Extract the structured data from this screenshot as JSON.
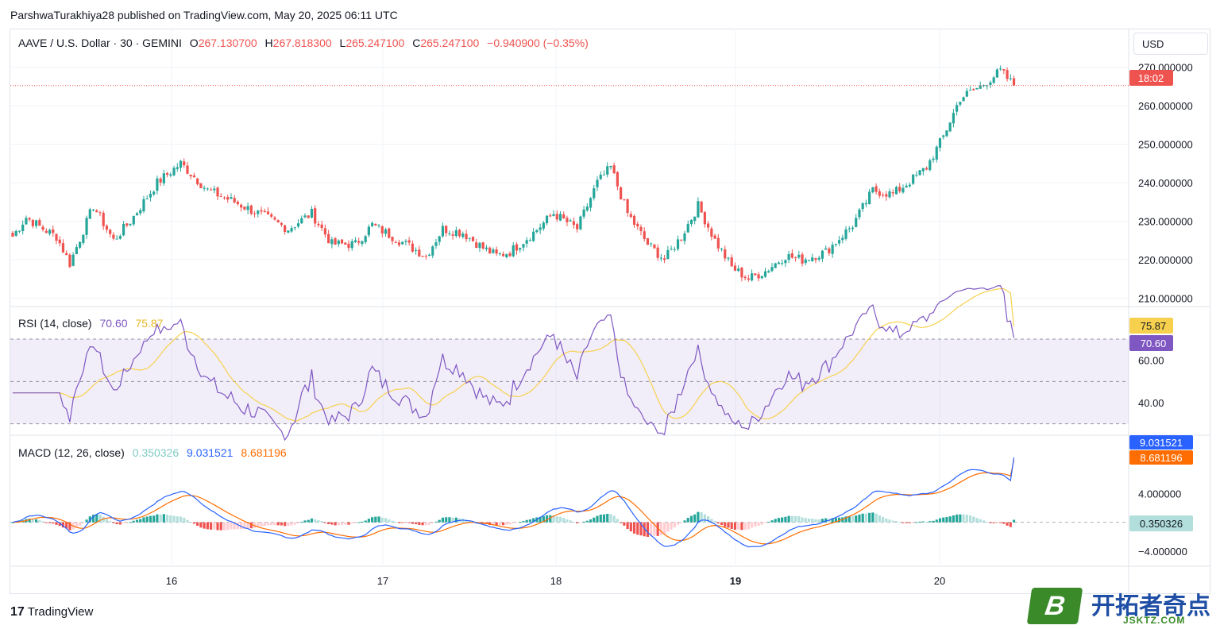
{
  "publisher": "ParshwaTurakhiya28 published on TradingView.com, May 20, 2025 06:11 UTC",
  "currency_button": "USD",
  "footer_logo": "TradingView",
  "watermark": {
    "mark": "B",
    "title": "开拓者奇点",
    "subtitle": "JSKTZ.COM"
  },
  "legend": {
    "symbol": "AAVE / U.S. Dollar · 30 · GEMINI",
    "o_label": "O",
    "o": "267.130700",
    "h_label": "H",
    "h": "267.818300",
    "l_label": "L",
    "l": "265.247100",
    "c_label": "C",
    "c": "265.247100",
    "change": "−0.940900 (−0.35%)"
  },
  "rsi_legend": {
    "name": "RSI (14, close)",
    "rsi": "70.60",
    "ma": "75.87"
  },
  "macd_legend": {
    "name": "MACD (12, 26, close)",
    "hist": "0.350326",
    "macd": "9.031521",
    "signal": "8.681196"
  },
  "price_badge": {
    "value": "270.000000",
    "countdown": "18:02"
  },
  "rsi_badges": {
    "ma": "75.87",
    "rsi": "70.60"
  },
  "macd_badges": {
    "macd": "9.031521",
    "signal": "8.681196",
    "hist": "0.350326"
  },
  "colors": {
    "up": "#26a69a",
    "down": "#ef5350",
    "rsi": "#7e57c2",
    "rsi_ma": "#f7d14e",
    "macd": "#2962ff",
    "signal": "#ff6d00",
    "hist_up": "#26a69a",
    "hist_up_fade": "#b2dfdb",
    "hist_down": "#ef5350",
    "hist_down_fade": "#ffcdd2"
  },
  "chart_data": [
    {
      "type": "candlestick",
      "title": "AAVE / U.S. Dollar · 30 · GEMINI",
      "x_tick_labels": [
        "16",
        "17",
        "18",
        "19",
        "20"
      ],
      "y_tick_labels": [
        "270.000000",
        "260.000000",
        "250.000000",
        "240.000000",
        "230.000000",
        "220.000000",
        "210.000000"
      ],
      "ylim": [
        208,
        272
      ],
      "grid": true,
      "last_price": 265.2471,
      "anchor_closes": [
        [
          0,
          226
        ],
        [
          4,
          231
        ],
        [
          9,
          228
        ],
        [
          13,
          226
        ],
        [
          17,
          219
        ],
        [
          24,
          234
        ],
        [
          30,
          225
        ],
        [
          35,
          230
        ],
        [
          43,
          240
        ],
        [
          50,
          245
        ],
        [
          58,
          238
        ],
        [
          66,
          235
        ],
        [
          73,
          232
        ],
        [
          82,
          228
        ],
        [
          89,
          232
        ],
        [
          95,
          224
        ],
        [
          102,
          224
        ],
        [
          107,
          229
        ],
        [
          115,
          225
        ],
        [
          123,
          221
        ],
        [
          128,
          228
        ],
        [
          134,
          227
        ],
        [
          140,
          223
        ],
        [
          144,
          221
        ],
        [
          148,
          222
        ],
        [
          155,
          227
        ],
        [
          161,
          232
        ],
        [
          168,
          228
        ],
        [
          174,
          240
        ],
        [
          178,
          244
        ],
        [
          183,
          232
        ],
        [
          189,
          224
        ],
        [
          194,
          220
        ],
        [
          199,
          226
        ],
        [
          204,
          234
        ],
        [
          209,
          225
        ],
        [
          214,
          218
        ],
        [
          219,
          215
        ],
        [
          224,
          217
        ],
        [
          230,
          221
        ],
        [
          235,
          220
        ],
        [
          242,
          222
        ],
        [
          250,
          229
        ],
        [
          256,
          238
        ],
        [
          262,
          237
        ],
        [
          268,
          241
        ],
        [
          272,
          244
        ],
        [
          277,
          252
        ],
        [
          282,
          262
        ],
        [
          288,
          265
        ],
        [
          294,
          269
        ],
        [
          298,
          265.25
        ]
      ],
      "ohlc": "60 candles per day reconstructed from closes anchored to the visible price path"
    },
    {
      "type": "line",
      "title": "RSI (14, close)",
      "y_tick_labels": [
        "60.00",
        "40.00"
      ],
      "ylim": [
        25,
        85
      ],
      "bands": [
        30,
        50,
        70
      ],
      "series": [
        {
          "name": "RSI",
          "last": 70.6
        },
        {
          "name": "MA",
          "last": 75.87
        }
      ]
    },
    {
      "type": "line",
      "title": "MACD (12, 26, close)",
      "y_tick_labels": [
        "4.000000",
        "−4.000000"
      ],
      "series": [
        {
          "name": "MACD",
          "last": 9.031521
        },
        {
          "name": "Signal",
          "last": 8.681196
        },
        {
          "name": "Histogram",
          "last": 0.350326
        }
      ]
    }
  ]
}
